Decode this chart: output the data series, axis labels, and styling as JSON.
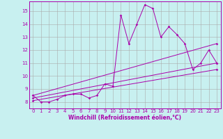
{
  "xlabel": "Windchill (Refroidissement éolien,°C)",
  "bg_color": "#c8f0f0",
  "line_color": "#aa00aa",
  "grid_color": "#aaaaaa",
  "xlim": [
    -0.5,
    23.5
  ],
  "ylim": [
    7.5,
    15.75
  ],
  "yticks": [
    8,
    9,
    10,
    11,
    12,
    13,
    14,
    15
  ],
  "xticks": [
    0,
    1,
    2,
    3,
    4,
    5,
    6,
    7,
    8,
    9,
    10,
    11,
    12,
    13,
    14,
    15,
    16,
    17,
    18,
    19,
    20,
    21,
    22,
    23
  ],
  "series1_x": [
    0,
    1,
    2,
    3,
    4,
    5,
    6,
    7,
    8,
    9,
    10,
    11,
    12,
    13,
    14,
    15,
    16,
    17,
    18,
    19,
    20,
    21,
    22,
    23
  ],
  "series1_y": [
    8.5,
    8.0,
    8.0,
    8.2,
    8.5,
    8.6,
    8.6,
    8.3,
    8.5,
    9.4,
    9.2,
    14.7,
    12.5,
    14.0,
    15.5,
    15.2,
    13.0,
    13.8,
    13.2,
    12.5,
    10.5,
    11.0,
    12.0,
    11.0
  ],
  "series2_x": [
    0,
    23
  ],
  "series2_y": [
    8.5,
    12.5
  ],
  "series3_x": [
    0,
    23
  ],
  "series3_y": [
    8.3,
    11.0
  ],
  "series4_x": [
    0,
    23
  ],
  "series4_y": [
    8.1,
    10.5
  ]
}
